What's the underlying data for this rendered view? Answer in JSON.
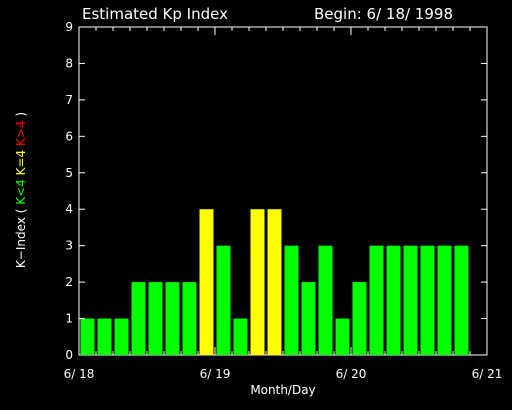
{
  "chart_data": {
    "type": "bar",
    "title": "Estimated Kp Index",
    "begin": "Begin: 6/ 18/ 1998",
    "xlabel": "Month/Day",
    "ylabel_prefix": "K−Index",
    "ylabel_segments": [
      {
        "text": "K<4",
        "color": "#00ff00"
      },
      {
        "text": "K=4",
        "color": "#ffff00"
      },
      {
        "text": "K>4",
        "color": "#ff0000"
      }
    ],
    "ylim": [
      0,
      9
    ],
    "yticks": [
      "0",
      "1",
      "2",
      "3",
      "4",
      "5",
      "6",
      "7",
      "8",
      "9"
    ],
    "x_tick_labels": [
      "6/ 18",
      "6/ 19",
      "6/ 20",
      "6/ 21"
    ],
    "bars_per_day": 8,
    "values": [
      1,
      1,
      1,
      2,
      2,
      2,
      2,
      4,
      3,
      1,
      4,
      4,
      3,
      2,
      3,
      1,
      2,
      3,
      3,
      3,
      3,
      3,
      3
    ],
    "colors": {
      "below4": "#00ff00",
      "equal4": "#ffff00",
      "above4": "#ff0000",
      "axis": "#ffffff",
      "background": "#000000"
    }
  }
}
